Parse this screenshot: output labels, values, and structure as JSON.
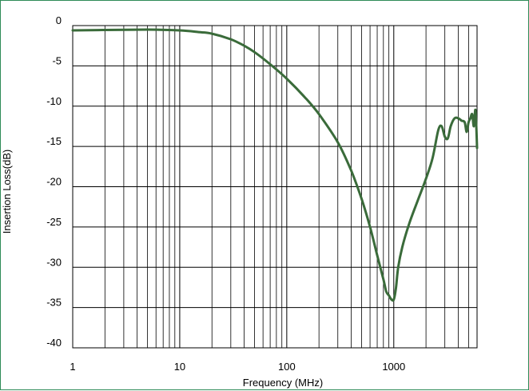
{
  "chart_data": {
    "type": "line",
    "title": "",
    "xlabel": "Frequency (MHz)",
    "ylabel": "Insertion Loss(dB)",
    "x_scale": "log",
    "xlim": [
      1,
      6000
    ],
    "ylim": [
      -40,
      0
    ],
    "x_ticks": [
      1,
      10,
      100,
      1000
    ],
    "x_tick_labels": [
      "1",
      "10",
      "100",
      "1000"
    ],
    "y_ticks": [
      0,
      -5,
      -10,
      -15,
      -20,
      -25,
      -30,
      -35,
      -40
    ],
    "y_tick_labels": [
      "0",
      "-5",
      "-10",
      "-15",
      "-20",
      "-25",
      "-30",
      "-35",
      "-40"
    ],
    "grid": true,
    "legend": "none",
    "series": [
      {
        "color": "#3a6b3a",
        "x": [
          1,
          2,
          5,
          10,
          15,
          20,
          30,
          40,
          50,
          70,
          100,
          150,
          200,
          300,
          400,
          500,
          600,
          700,
          800,
          850,
          900,
          950,
          1000,
          1050,
          1100,
          1200,
          1400,
          1700,
          2000,
          2300,
          2600,
          2800,
          3000,
          3200,
          3400,
          3700,
          4000,
          4300,
          4600,
          4800,
          5000,
          5200,
          5400,
          5600,
          5800,
          6000
        ],
        "y": [
          -0.6,
          -0.55,
          -0.5,
          -0.6,
          -0.8,
          -1.0,
          -1.7,
          -2.5,
          -3.3,
          -4.8,
          -6.6,
          -9.0,
          -11.0,
          -14.5,
          -18.0,
          -21.5,
          -25.0,
          -28.5,
          -31.5,
          -33.0,
          -33.5,
          -34.0,
          -34.0,
          -32.5,
          -30.0,
          -27.5,
          -24.5,
          -21.5,
          -19.0,
          -16.5,
          -13.0,
          -12.5,
          -13.8,
          -14.0,
          -12.5,
          -11.5,
          -11.5,
          -11.8,
          -12.0,
          -13.2,
          -12.0,
          -11.5,
          -11.0,
          -12.5,
          -10.5,
          -15.2
        ]
      }
    ]
  }
}
